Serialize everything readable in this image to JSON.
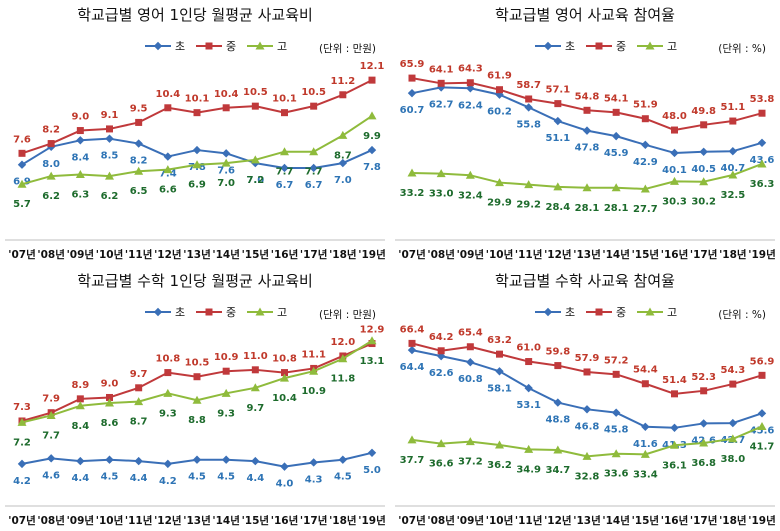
{
  "colors": {
    "elem": "#3a6fb7",
    "mid": "#c0393b",
    "high": "#8fbb3c",
    "elem_label": "#2e74b5",
    "mid_label": "#c0392b",
    "high_label": "#1d6b2c"
  },
  "legend": [
    "초",
    "중",
    "고"
  ],
  "chart_data": [
    {
      "type": "line",
      "title": "학교급별 영어 1인당 월평균 사교육비",
      "unit": "(단위 : 만원)",
      "categories": [
        "'07년",
        "'08년",
        "'09년",
        "'10년",
        "'11년",
        "'12년",
        "'13년",
        "'14년",
        "'15년",
        "'16년",
        "'17년",
        "'18년",
        "'19년"
      ],
      "ylim": [
        3.5,
        12.6
      ],
      "series": [
        {
          "name": "초",
          "values": [
            6.9,
            8.0,
            8.4,
            8.5,
            8.2,
            7.4,
            7.8,
            7.6,
            7.0,
            6.7,
            6.7,
            7.0,
            7.8
          ]
        },
        {
          "name": "중",
          "values": [
            7.6,
            8.2,
            9.0,
            9.1,
            9.5,
            10.4,
            10.1,
            10.4,
            10.5,
            10.1,
            10.5,
            11.2,
            12.1
          ]
        },
        {
          "name": "고",
          "values": [
            5.7,
            6.2,
            6.3,
            6.2,
            6.5,
            6.6,
            6.9,
            7.0,
            7.2,
            7.7,
            7.7,
            8.7,
            9.9
          ]
        }
      ]
    },
    {
      "type": "line",
      "title": "학교급별 영어 사교육 참여율",
      "unit": "(단위 : %)",
      "categories": [
        "'07년",
        "'08년",
        "'09년",
        "'10년",
        "'11년",
        "'12년",
        "'13년",
        "'14년",
        "'15년",
        "'16년",
        "'17년",
        "'18년",
        "'19년"
      ],
      "ylim": [
        17,
        68
      ],
      "series": [
        {
          "name": "초",
          "values": [
            60.7,
            62.7,
            62.4,
            60.2,
            55.8,
            51.1,
            47.8,
            45.9,
            42.9,
            40.1,
            40.5,
            40.7,
            43.6
          ]
        },
        {
          "name": "중",
          "values": [
            65.9,
            64.1,
            64.3,
            61.9,
            58.7,
            57.1,
            54.8,
            54.1,
            51.9,
            48.0,
            49.8,
            51.1,
            53.8
          ]
        },
        {
          "name": "고",
          "values": [
            33.2,
            33.0,
            32.4,
            29.9,
            29.2,
            28.4,
            28.1,
            28.1,
            27.7,
            30.3,
            30.2,
            32.5,
            36.3
          ]
        }
      ]
    },
    {
      "type": "line",
      "title": "학교급별 수학 1인당 월평균 사교육비",
      "unit": "(단위 : 만원)",
      "categories": [
        "'07년",
        "'08년",
        "'09년",
        "'10년",
        "'11년",
        "'12년",
        "'13년",
        "'14년",
        "'15년",
        "'16년",
        "'17년",
        "'18년",
        "'19년"
      ],
      "ylim": [
        2.6,
        13.3
      ],
      "series": [
        {
          "name": "초",
          "values": [
            4.2,
            4.6,
            4.4,
            4.5,
            4.4,
            4.2,
            4.5,
            4.5,
            4.4,
            4.0,
            4.3,
            4.5,
            5.0
          ]
        },
        {
          "name": "중",
          "values": [
            7.3,
            7.9,
            8.9,
            9.0,
            9.7,
            10.8,
            10.5,
            10.9,
            11.0,
            10.8,
            11.1,
            12.0,
            12.9
          ]
        },
        {
          "name": "고",
          "values": [
            7.2,
            7.7,
            8.4,
            8.6,
            8.7,
            9.3,
            8.8,
            9.3,
            9.7,
            10.4,
            10.9,
            11.8,
            13.1
          ]
        }
      ]
    },
    {
      "type": "line",
      "title": "학교급별 수학 사교육 참여율",
      "unit": "(단위 : %)",
      "categories": [
        "'07년",
        "'08년",
        "'09년",
        "'10년",
        "'11년",
        "'12년",
        "'13년",
        "'14년",
        "'15년",
        "'16년",
        "'17년",
        "'18년",
        "'19년"
      ],
      "ylim": [
        24,
        68
      ],
      "series": [
        {
          "name": "초",
          "values": [
            64.4,
            62.6,
            60.8,
            58.1,
            53.1,
            48.8,
            46.8,
            45.8,
            41.6,
            41.3,
            42.6,
            42.7,
            45.6
          ]
        },
        {
          "name": "중",
          "values": [
            66.4,
            64.2,
            65.4,
            63.2,
            61.0,
            59.8,
            57.9,
            57.2,
            54.4,
            51.4,
            52.3,
            54.3,
            56.9
          ]
        },
        {
          "name": "고",
          "values": [
            37.7,
            36.6,
            37.2,
            36.2,
            34.9,
            34.7,
            32.8,
            33.6,
            33.4,
            36.1,
            36.8,
            38.0,
            41.7
          ]
        }
      ]
    }
  ]
}
